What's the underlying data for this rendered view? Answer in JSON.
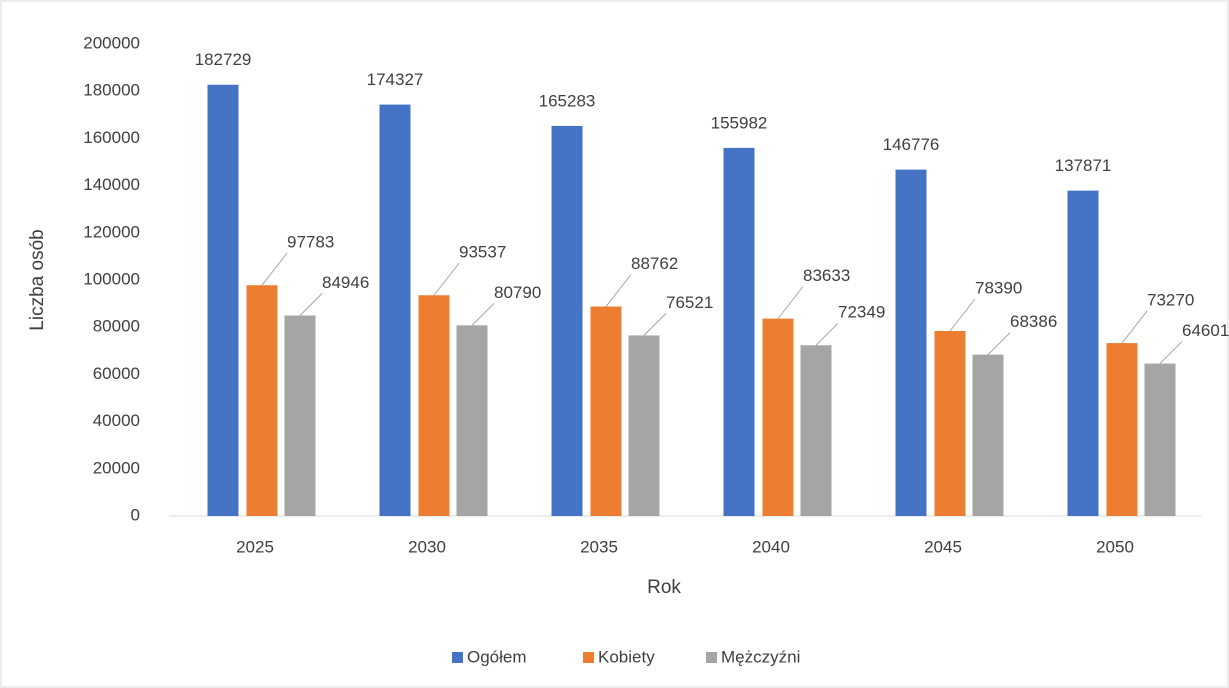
{
  "chart_data": {
    "type": "bar",
    "x_label": "Rok",
    "y_label": "Liczba osób",
    "categories": [
      "2025",
      "2030",
      "2035",
      "2040",
      "2045",
      "2050"
    ],
    "series": [
      {
        "name": "Ogółem",
        "color": "#4472c4",
        "values": [
          182729,
          174327,
          165283,
          155982,
          146776,
          137871
        ]
      },
      {
        "name": "Kobiety",
        "color": "#ed7d31",
        "values": [
          97783,
          93537,
          88762,
          83633,
          78390,
          73270
        ]
      },
      {
        "name": "Mężczyźni",
        "color": "#a5a5a5",
        "values": [
          84946,
          80790,
          76521,
          72349,
          68386,
          64601
        ]
      }
    ],
    "ylim": [
      0,
      200000
    ],
    "yticks": [
      0,
      20000,
      40000,
      60000,
      80000,
      100000,
      120000,
      140000,
      160000,
      180000,
      200000
    ],
    "grid": false,
    "legend": "bottom"
  }
}
